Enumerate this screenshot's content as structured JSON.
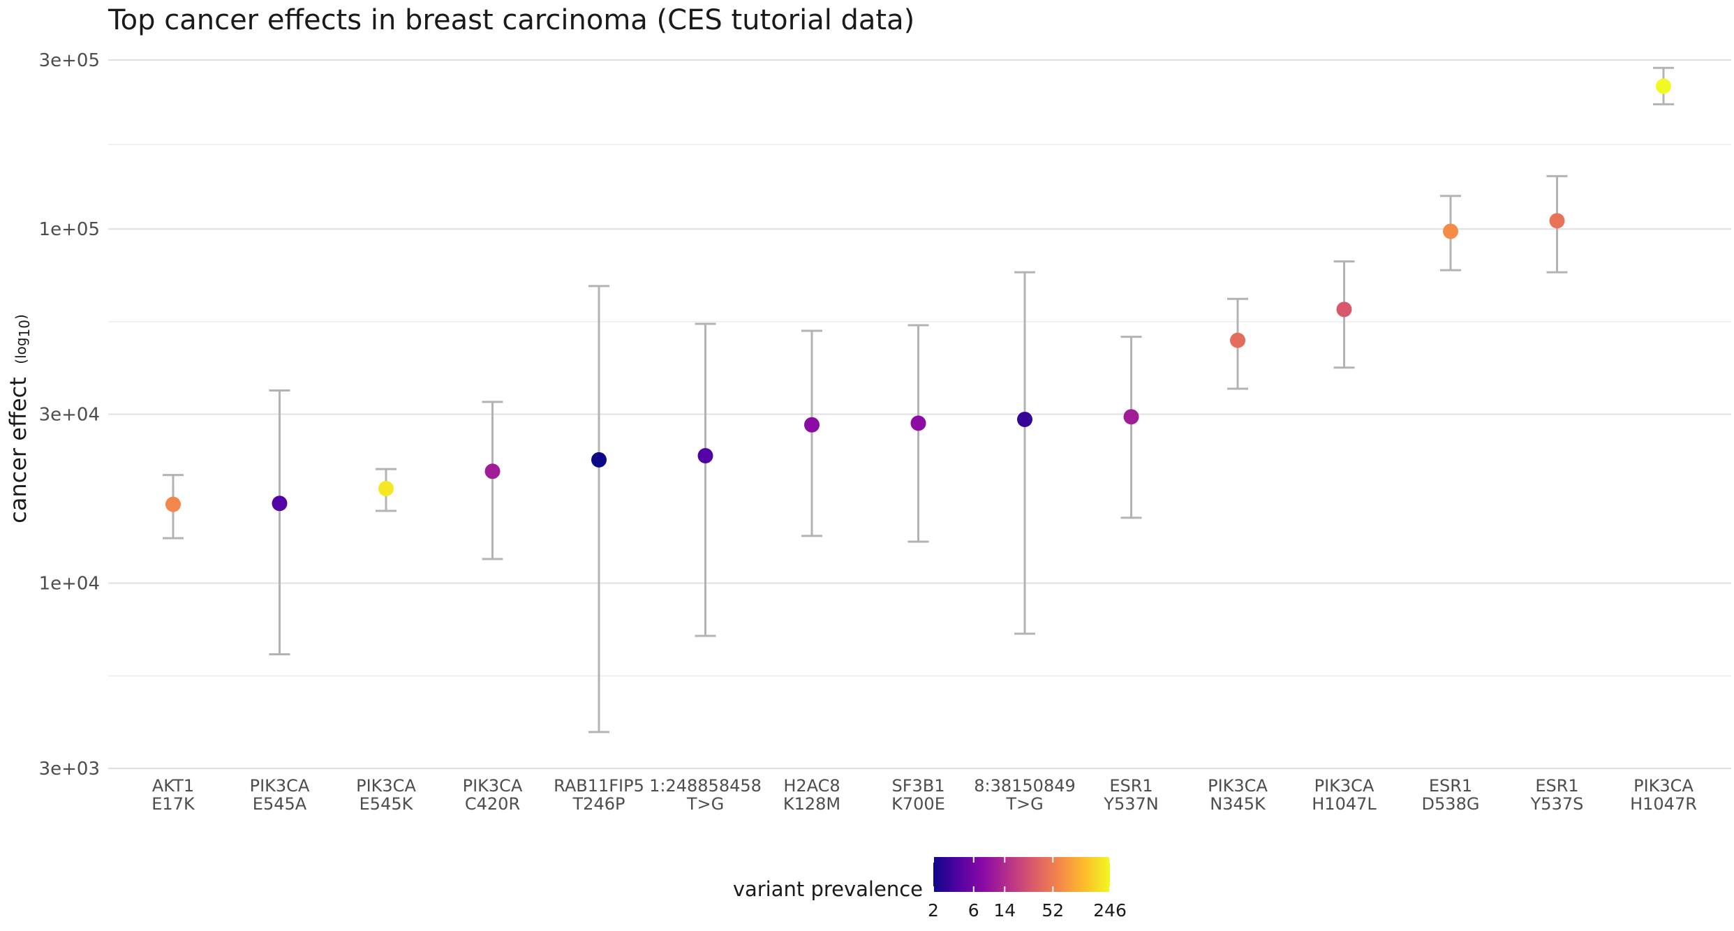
{
  "chart_data": {
    "type": "scatter",
    "title": "Top cancer effects in breast carcinoma (CES tutorial data)",
    "ylabel": "cancer effect",
    "ylabel_sub": "(log",
    "ylabel_sub_base": "10",
    "ylabel_sub_close": ")",
    "xlabel": "",
    "y_scale": "log10",
    "ylim": [
      3000,
      300000
    ],
    "y_ticks": [
      {
        "value": 3000,
        "label": "3e+03"
      },
      {
        "value": 10000,
        "label": "1e+04"
      },
      {
        "value": 30000,
        "label": "3e+04"
      },
      {
        "value": 100000,
        "label": "1e+05"
      },
      {
        "value": 300000,
        "label": "3e+05"
      }
    ],
    "y_minor_ticks": [
      5477,
      54772,
      173205
    ],
    "grid": true,
    "points": [
      {
        "gene": "AKT1",
        "variant": "E17K",
        "value": 16700,
        "ci_low": 13400,
        "ci_high": 20200,
        "prevalence": 60
      },
      {
        "gene": "PIK3CA",
        "variant": "E545A",
        "value": 16800,
        "ci_low": 6300,
        "ci_high": 35000,
        "prevalence": 4
      },
      {
        "gene": "PIK3CA",
        "variant": "E545K",
        "value": 18500,
        "ci_low": 16000,
        "ci_high": 21000,
        "prevalence": 200
      },
      {
        "gene": "PIK3CA",
        "variant": "C420R",
        "value": 20700,
        "ci_low": 11700,
        "ci_high": 32500,
        "prevalence": 11
      },
      {
        "gene": "RAB11FIP5",
        "variant": "T246P",
        "value": 22300,
        "ci_low": 3800,
        "ci_high": 69000,
        "prevalence": 2
      },
      {
        "gene": "1:248858458",
        "variant": "T>G",
        "value": 22900,
        "ci_low": 7100,
        "ci_high": 54000,
        "prevalence": 4
      },
      {
        "gene": "H2AC8",
        "variant": "K128M",
        "value": 28000,
        "ci_low": 13600,
        "ci_high": 51600,
        "prevalence": 8
      },
      {
        "gene": "SF3B1",
        "variant": "K700E",
        "value": 28300,
        "ci_low": 13100,
        "ci_high": 53500,
        "prevalence": 8
      },
      {
        "gene": "8:38150849",
        "variant": "T>G",
        "value": 29000,
        "ci_low": 7200,
        "ci_high": 75500,
        "prevalence": 3
      },
      {
        "gene": "ESR1",
        "variant": "Y537N",
        "value": 29500,
        "ci_low": 15300,
        "ci_high": 49600,
        "prevalence": 11
      },
      {
        "gene": "PIK3CA",
        "variant": "N345K",
        "value": 48500,
        "ci_low": 35400,
        "ci_high": 63500,
        "prevalence": 40
      },
      {
        "gene": "PIK3CA",
        "variant": "H1047L",
        "value": 59300,
        "ci_low": 40600,
        "ci_high": 81000,
        "prevalence": 30
      },
      {
        "gene": "ESR1",
        "variant": "D538G",
        "value": 98500,
        "ci_low": 76500,
        "ci_high": 124000,
        "prevalence": 65
      },
      {
        "gene": "ESR1",
        "variant": "Y537S",
        "value": 105500,
        "ci_low": 75500,
        "ci_high": 141000,
        "prevalence": 45
      },
      {
        "gene": "PIK3CA",
        "variant": "H1047R",
        "value": 253000,
        "ci_low": 225000,
        "ci_high": 285000,
        "prevalence": 246
      }
    ],
    "error_bar_color": "#b3b3b3",
    "legend": {
      "title": "variant prevalence",
      "placement": "bottom",
      "scale": "log",
      "range": [
        2,
        246
      ],
      "ticks": [
        {
          "value": 2,
          "label": "2"
        },
        {
          "value": 6,
          "label": "6"
        },
        {
          "value": 14,
          "label": "14"
        },
        {
          "value": 52,
          "label": "52"
        },
        {
          "value": 246,
          "label": "246"
        }
      ],
      "colormap": [
        "#0d0887",
        "#5302a3",
        "#8b0aa5",
        "#b83289",
        "#db5c68",
        "#f48849",
        "#febd2a",
        "#f0f921"
      ]
    }
  }
}
